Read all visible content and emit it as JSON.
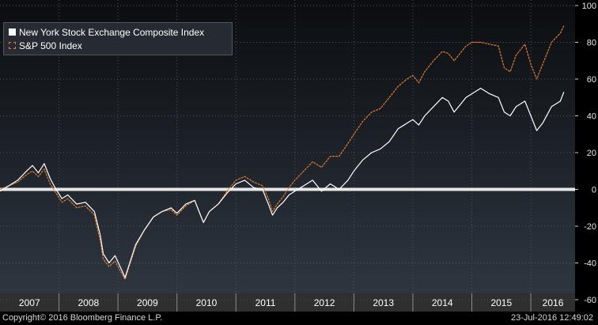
{
  "chart_data": {
    "type": "line",
    "xlim": [
      2007.0,
      2016.75
    ],
    "ylim": [
      -65,
      100
    ],
    "y_ticks": [
      100,
      80,
      60,
      40,
      20,
      0,
      -20,
      -40,
      -60
    ],
    "x_tick_labels": [
      "2007",
      "2008",
      "2009",
      "2010",
      "2011",
      "2012",
      "2013",
      "2014",
      "2015",
      "2016"
    ],
    "grid": true,
    "legend_position": "top-left",
    "series": [
      {
        "name": "New York Stock Exchange Composite Index",
        "color": "#ffffff",
        "style": "solid",
        "x": [
          2007.0,
          2007.15,
          2007.3,
          2007.45,
          2007.55,
          2007.65,
          2007.75,
          2007.85,
          2007.95,
          2008.05,
          2008.15,
          2008.3,
          2008.45,
          2008.6,
          2008.7,
          2008.75,
          2008.85,
          2008.95,
          2009.05,
          2009.12,
          2009.2,
          2009.3,
          2009.45,
          2009.6,
          2009.75,
          2009.9,
          2010.0,
          2010.15,
          2010.3,
          2010.45,
          2010.55,
          2010.7,
          2010.85,
          2011.0,
          2011.15,
          2011.3,
          2011.45,
          2011.55,
          2011.62,
          2011.7,
          2011.8,
          2011.9,
          2012.0,
          2012.15,
          2012.3,
          2012.45,
          2012.6,
          2012.75,
          2012.9,
          2013.0,
          2013.15,
          2013.3,
          2013.45,
          2013.6,
          2013.75,
          2013.9,
          2014.0,
          2014.1,
          2014.2,
          2014.35,
          2014.5,
          2014.6,
          2014.7,
          2014.8,
          2014.9,
          2015.0,
          2015.15,
          2015.3,
          2015.45,
          2015.55,
          2015.65,
          2015.75,
          2015.9,
          2016.0,
          2016.1,
          2016.2,
          2016.35,
          2016.5,
          2016.56
        ],
        "values": [
          -1,
          2,
          5,
          10,
          13,
          9,
          14,
          6,
          0,
          -5,
          -3,
          -8,
          -7,
          -12,
          -25,
          -35,
          -40,
          -36,
          -43,
          -48,
          -40,
          -30,
          -22,
          -15,
          -12,
          -10,
          -13,
          -8,
          -6,
          -18,
          -12,
          -8,
          -2,
          3,
          5,
          1,
          0,
          -8,
          -14,
          -10,
          -7,
          -3,
          -1,
          2,
          5,
          -1,
          3,
          0,
          5,
          10,
          16,
          20,
          22,
          26,
          33,
          36,
          38,
          35,
          40,
          45,
          50,
          48,
          42,
          46,
          50,
          52,
          55,
          52,
          50,
          42,
          40,
          45,
          48,
          40,
          32,
          36,
          45,
          48,
          53
        ]
      },
      {
        "name": "S&P 500 Index",
        "color": "#e07b2a",
        "style": "dashed",
        "x": [
          2007.0,
          2007.15,
          2007.3,
          2007.45,
          2007.55,
          2007.65,
          2007.75,
          2007.85,
          2007.95,
          2008.05,
          2008.15,
          2008.3,
          2008.45,
          2008.6,
          2008.7,
          2008.75,
          2008.85,
          2008.95,
          2009.05,
          2009.12,
          2009.2,
          2009.3,
          2009.45,
          2009.6,
          2009.75,
          2009.9,
          2010.0,
          2010.15,
          2010.3,
          2010.45,
          2010.55,
          2010.7,
          2010.85,
          2011.0,
          2011.15,
          2011.3,
          2011.45,
          2011.55,
          2011.62,
          2011.7,
          2011.8,
          2011.9,
          2012.0,
          2012.15,
          2012.3,
          2012.45,
          2012.6,
          2012.75,
          2012.9,
          2013.0,
          2013.15,
          2013.3,
          2013.45,
          2013.6,
          2013.75,
          2013.9,
          2014.0,
          2014.1,
          2014.2,
          2014.35,
          2014.5,
          2014.6,
          2014.7,
          2014.8,
          2014.9,
          2015.0,
          2015.15,
          2015.3,
          2015.45,
          2015.55,
          2015.65,
          2015.75,
          2015.9,
          2016.0,
          2016.1,
          2016.2,
          2016.35,
          2016.5,
          2016.56
        ],
        "values": [
          0,
          2,
          4,
          8,
          10,
          7,
          11,
          3,
          -2,
          -7,
          -5,
          -10,
          -9,
          -14,
          -28,
          -38,
          -42,
          -39,
          -45,
          -49,
          -41,
          -31,
          -22,
          -15,
          -12,
          -11,
          -14,
          -9,
          -6,
          -18,
          -12,
          -8,
          -1,
          5,
          7,
          4,
          2,
          -5,
          -12,
          -8,
          -4,
          1,
          5,
          10,
          15,
          12,
          18,
          18,
          25,
          30,
          37,
          42,
          44,
          50,
          56,
          60,
          62,
          58,
          64,
          70,
          75,
          74,
          70,
          74,
          78,
          80,
          80,
          79,
          78,
          66,
          64,
          73,
          79,
          68,
          60,
          68,
          80,
          85,
          89
        ]
      }
    ]
  },
  "footer": {
    "copyright": "Copyright© 2016 Bloomberg Finance L.P.",
    "timestamp": "23-Jul-2016 12:49:02"
  },
  "colors": {
    "background_top": "#0b0d10",
    "background_bottom": "#2e3640",
    "zero_line": "#e6e6e6",
    "grid": "#4a5460"
  }
}
